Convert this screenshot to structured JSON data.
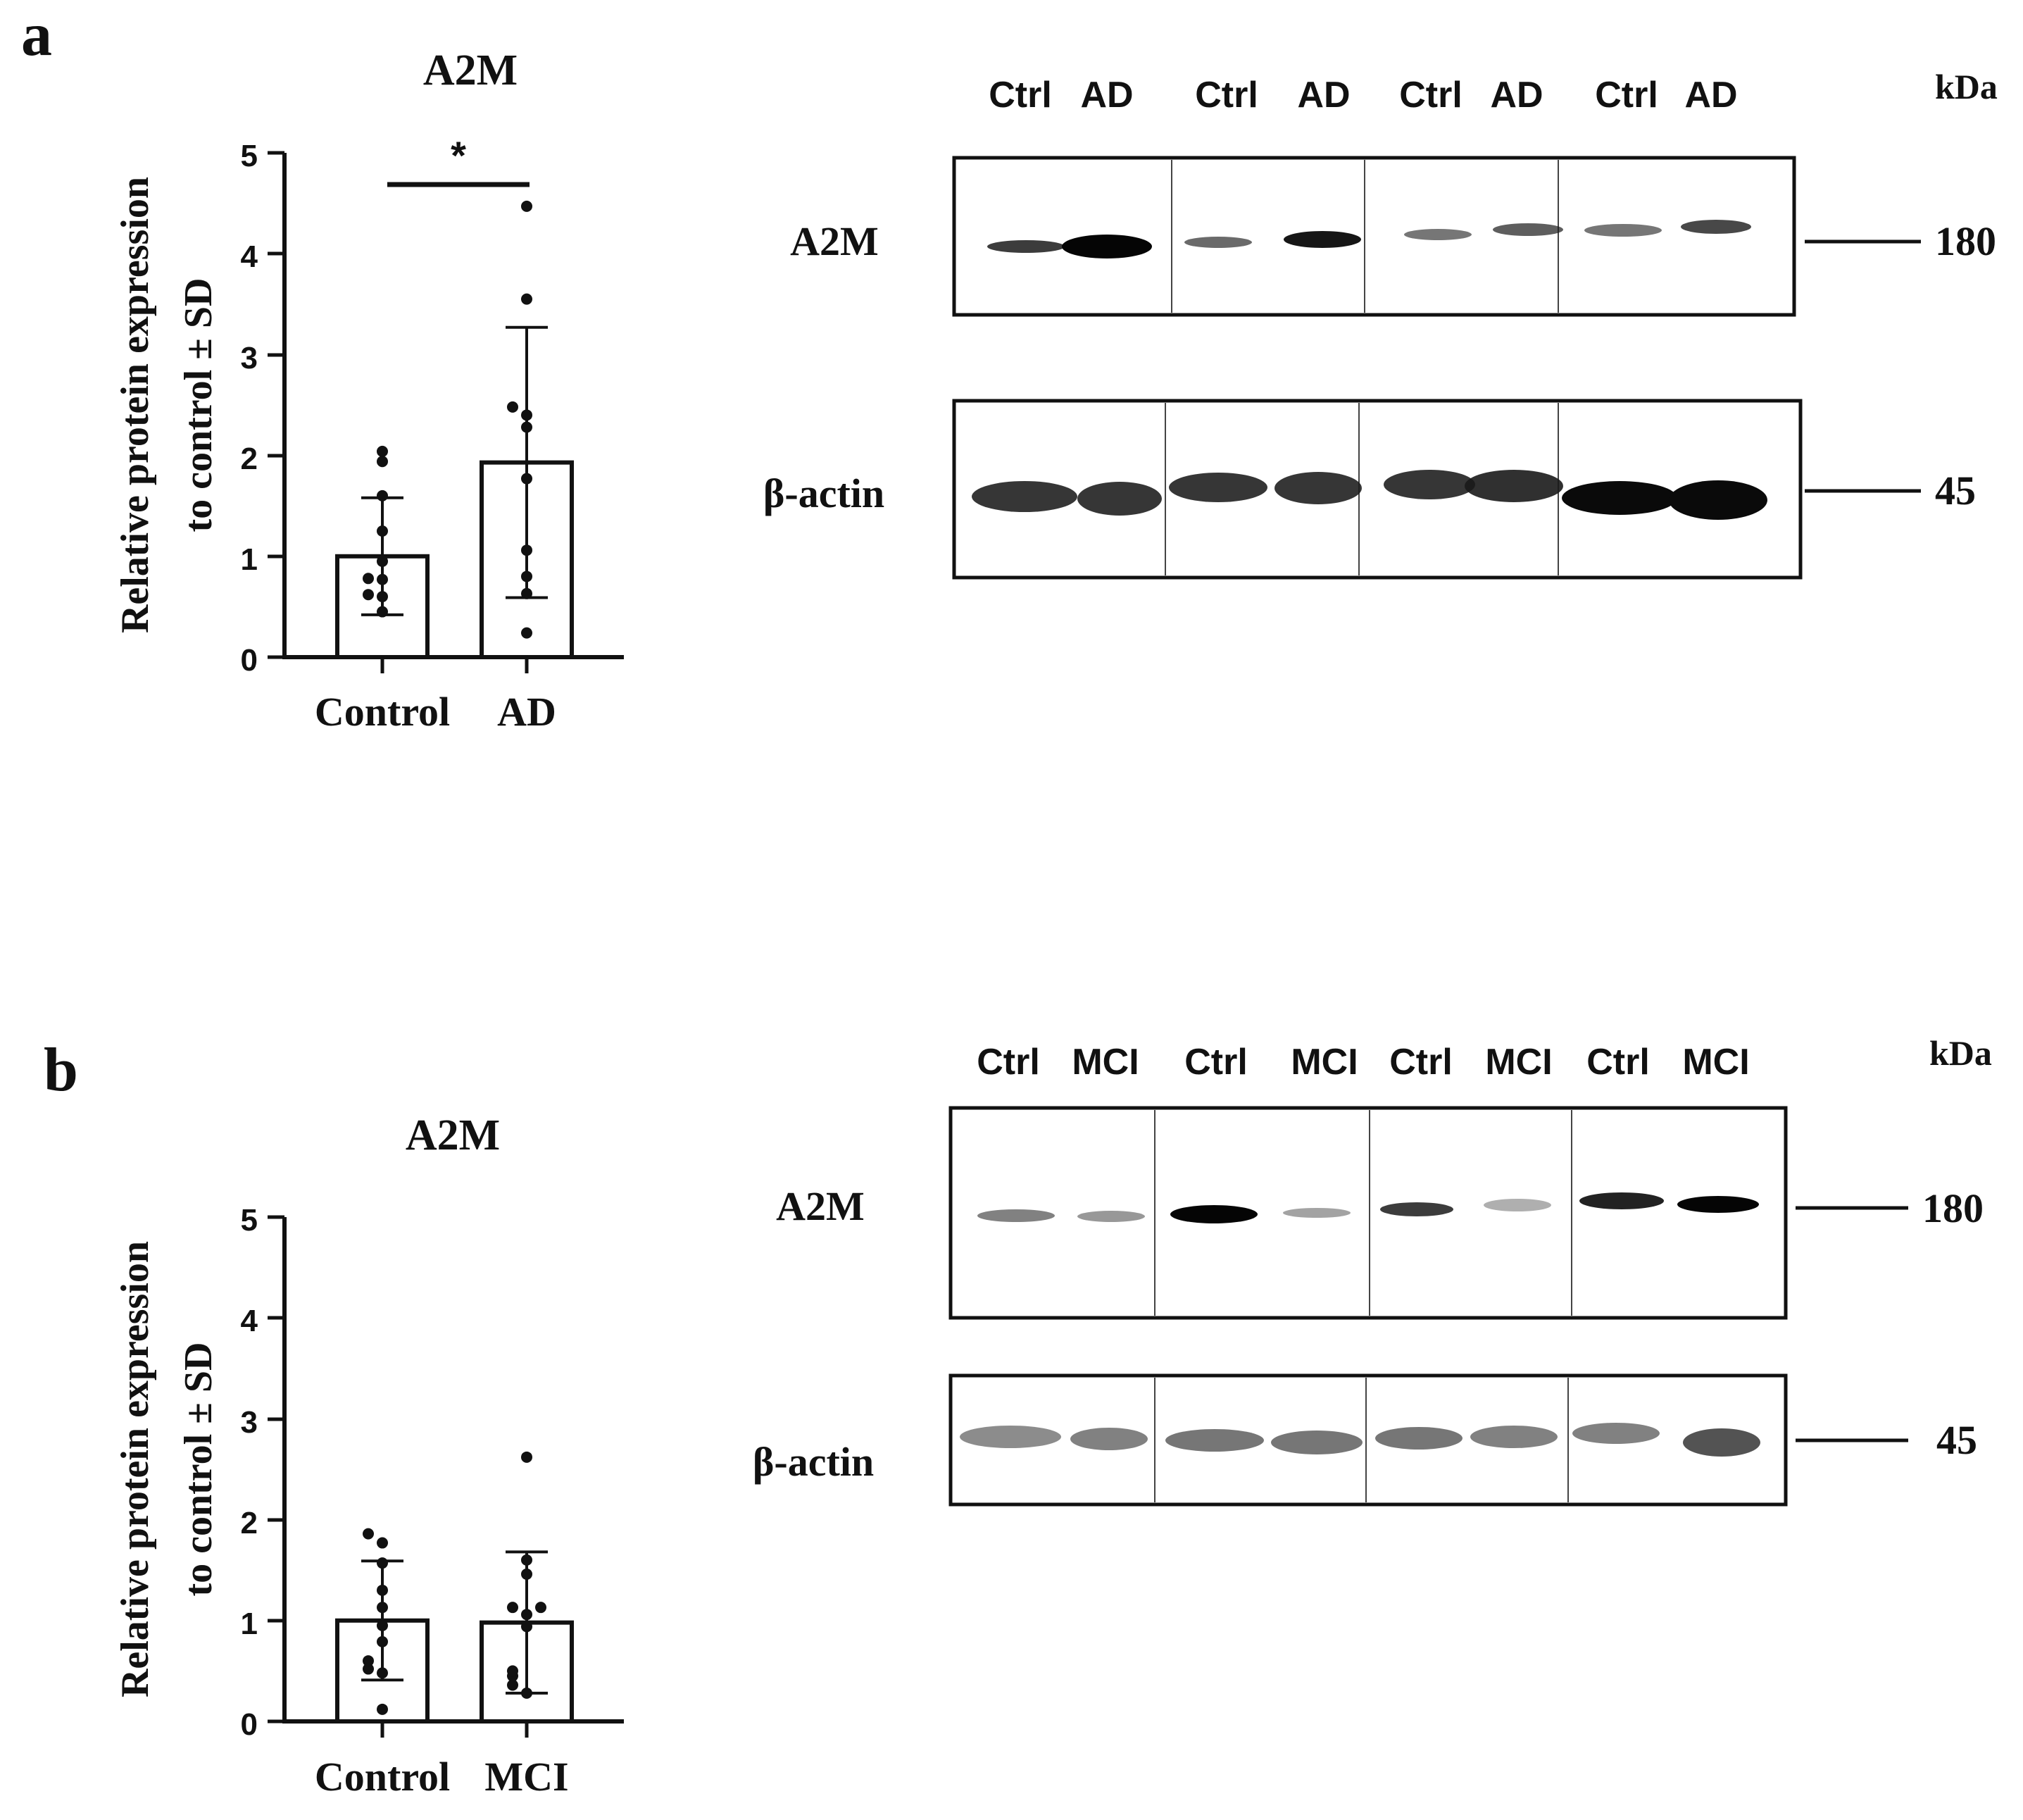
{
  "panels": [
    {
      "letter": "a",
      "chart": {
        "type": "bar",
        "title": "A2M",
        "ylabel_line1": "Relative protein expression",
        "ylabel_line2": "to control ± SD",
        "yticks": [
          "0",
          "1",
          "2",
          "3",
          "4",
          "5"
        ],
        "ylim": [
          0,
          5
        ],
        "categories": [
          "Control",
          "AD"
        ],
        "values": [
          1.0,
          1.93
        ],
        "sd": [
          0.58,
          1.34
        ],
        "points": [
          [
            2.04,
            1.94,
            1.6,
            1.25,
            0.95,
            0.77,
            0.78,
            0.62,
            0.6,
            0.45
          ],
          [
            4.47,
            3.55,
            2.48,
            2.4,
            2.28,
            1.77,
            1.06,
            0.8,
            0.63,
            0.24
          ]
        ],
        "significance": "*"
      },
      "blot": {
        "lane_labels": [
          "Ctrl",
          "AD",
          "Ctrl",
          "AD",
          "Ctrl",
          "AD",
          "Ctrl",
          "AD"
        ],
        "kda_label": "kDa",
        "rows": [
          {
            "protein": "A2M",
            "marker": "180"
          },
          {
            "protein": "β-actin",
            "marker": "45"
          }
        ]
      }
    },
    {
      "letter": "b",
      "chart": {
        "type": "bar",
        "title": "A2M",
        "ylabel_line1": "Relative protein expression",
        "ylabel_line2": "to control ± SD",
        "yticks": [
          "0",
          "1",
          "2",
          "3",
          "4",
          "5"
        ],
        "ylim": [
          0,
          5
        ],
        "categories": [
          "Control",
          "MCI"
        ],
        "values": [
          1.0,
          0.98
        ],
        "sd": [
          0.59,
          0.7
        ],
        "points": [
          [
            1.86,
            1.77,
            1.57,
            1.3,
            1.13,
            0.95,
            0.79,
            0.6,
            0.52,
            0.48,
            0.12
          ],
          [
            2.62,
            1.6,
            1.46,
            1.13,
            1.13,
            1.06,
            0.94,
            0.5,
            0.45,
            0.36,
            0.28
          ]
        ],
        "significance": ""
      },
      "blot": {
        "lane_labels": [
          "Ctrl",
          "MCI",
          "Ctrl",
          "MCI",
          "Ctrl",
          "MCI",
          "Ctrl",
          "MCI"
        ],
        "kda_label": "kDa",
        "rows": [
          {
            "protein": "A2M",
            "marker": "180"
          },
          {
            "protein": "β-actin",
            "marker": "45"
          }
        ]
      }
    }
  ],
  "colors": {
    "ink": "#111111",
    "band": "#1a1a1a",
    "membrane": "#ffffff"
  }
}
